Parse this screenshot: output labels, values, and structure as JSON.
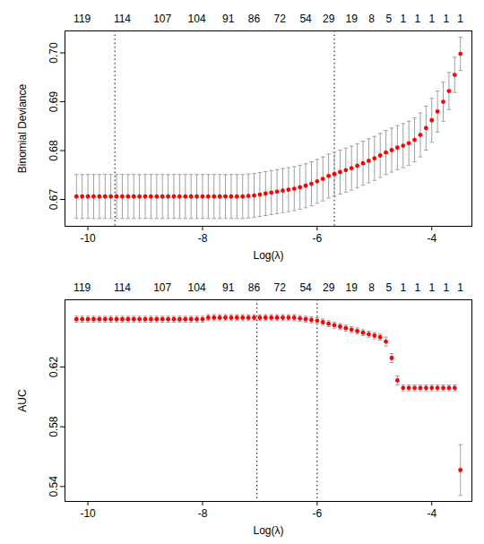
{
  "chart_data": [
    {
      "type": "scatter",
      "x_label": "Log(λ)",
      "y_label": "Binomial Deviance",
      "color": "#ff0000",
      "x": [
        -10.2,
        -10.1,
        -10.0,
        -9.9,
        -9.8,
        -9.7,
        -9.6,
        -9.5,
        -9.4,
        -9.3,
        -9.2,
        -9.1,
        -9.0,
        -8.9,
        -8.8,
        -8.7,
        -8.6,
        -8.5,
        -8.4,
        -8.3,
        -8.2,
        -8.1,
        -8.0,
        -7.9,
        -7.8,
        -7.7,
        -7.6,
        -7.5,
        -7.4,
        -7.3,
        -7.2,
        -7.1,
        -7.0,
        -6.9,
        -6.8,
        -6.7,
        -6.6,
        -6.5,
        -6.4,
        -6.3,
        -6.2,
        -6.1,
        -6.0,
        -5.9,
        -5.8,
        -5.7,
        -5.6,
        -5.5,
        -5.4,
        -5.3,
        -5.2,
        -5.1,
        -5.0,
        -4.9,
        -4.8,
        -4.7,
        -4.6,
        -4.5,
        -4.4,
        -4.3,
        -4.2,
        -4.1,
        -4.0,
        -3.9,
        -3.8,
        -3.7,
        -3.6,
        -3.5
      ],
      "values": [
        0.6706,
        0.6706,
        0.6706,
        0.6706,
        0.6706,
        0.6706,
        0.6706,
        0.6706,
        0.6706,
        0.6706,
        0.6706,
        0.6706,
        0.6706,
        0.6706,
        0.6706,
        0.6706,
        0.6706,
        0.6706,
        0.6706,
        0.6706,
        0.6706,
        0.6706,
        0.6706,
        0.6706,
        0.6706,
        0.6706,
        0.6706,
        0.6706,
        0.6706,
        0.6706,
        0.6707,
        0.6708,
        0.671,
        0.6712,
        0.6714,
        0.6716,
        0.6718,
        0.672,
        0.6722,
        0.6725,
        0.6728,
        0.6732,
        0.6737,
        0.6742,
        0.6748,
        0.6752,
        0.6756,
        0.676,
        0.6764,
        0.6769,
        0.6774,
        0.6779,
        0.6784,
        0.679,
        0.6796,
        0.6801,
        0.6806,
        0.681,
        0.6815,
        0.6822,
        0.6832,
        0.6846,
        0.6862,
        0.688,
        0.69,
        0.6922,
        0.6955,
        0.6998
      ],
      "errors": [
        0.0045,
        0.0045,
        0.0045,
        0.0045,
        0.0045,
        0.0045,
        0.0045,
        0.0045,
        0.0045,
        0.0045,
        0.0045,
        0.0045,
        0.0045,
        0.0045,
        0.0045,
        0.0045,
        0.0045,
        0.0045,
        0.0045,
        0.0045,
        0.0045,
        0.0045,
        0.0045,
        0.0045,
        0.0045,
        0.0045,
        0.0045,
        0.0045,
        0.0045,
        0.0045,
        0.0045,
        0.0045,
        0.0045,
        0.0045,
        0.0045,
        0.0045,
        0.0045,
        0.0045,
        0.0045,
        0.0045,
        0.0045,
        0.0045,
        0.0045,
        0.0045,
        0.0045,
        0.0045,
        0.0045,
        0.0045,
        0.0045,
        0.0045,
        0.0045,
        0.0045,
        0.0045,
        0.0045,
        0.0045,
        0.0045,
        0.0045,
        0.0045,
        0.0045,
        0.0045,
        0.0045,
        0.0045,
        0.0045,
        0.0042,
        0.004,
        0.0038,
        0.0036,
        0.0034
      ],
      "xlim": [
        -10.4,
        -3.3
      ],
      "xticks": [
        -10,
        -8,
        -6,
        -4
      ],
      "ylim": [
        0.6645,
        0.7045
      ],
      "yticks": [
        0.67,
        0.68,
        0.69,
        0.7
      ],
      "reference_lines": [
        -9.53,
        -5.7
      ],
      "line_style": "dotted",
      "top_ticks": [
        {
          "value": -10.1,
          "label": "119"
        },
        {
          "value": -9.4,
          "label": "114"
        },
        {
          "value": -8.7,
          "label": "107"
        },
        {
          "value": -8.1,
          "label": "104"
        },
        {
          "value": -7.55,
          "label": "91"
        },
        {
          "value": -7.1,
          "label": "86"
        },
        {
          "value": -6.65,
          "label": "72"
        },
        {
          "value": -6.2,
          "label": "54"
        },
        {
          "value": -5.8,
          "label": "29"
        },
        {
          "value": -5.4,
          "label": "19"
        },
        {
          "value": -5.05,
          "label": "8"
        },
        {
          "value": -4.75,
          "label": "5"
        },
        {
          "value": -4.5,
          "label": "1"
        },
        {
          "value": -4.25,
          "label": "1"
        },
        {
          "value": -4.0,
          "label": "1"
        },
        {
          "value": -3.75,
          "label": "1"
        },
        {
          "value": -3.5,
          "label": "1"
        }
      ]
    },
    {
      "type": "scatter",
      "x_label": "Log(λ)",
      "y_label": "AUC",
      "color": "#ff0000",
      "x": [
        -10.2,
        -10.1,
        -10.0,
        -9.9,
        -9.8,
        -9.7,
        -9.6,
        -9.5,
        -9.4,
        -9.3,
        -9.2,
        -9.1,
        -9.0,
        -8.9,
        -8.8,
        -8.7,
        -8.6,
        -8.5,
        -8.4,
        -8.3,
        -8.2,
        -8.1,
        -8.0,
        -7.9,
        -7.8,
        -7.7,
        -7.6,
        -7.5,
        -7.4,
        -7.3,
        -7.2,
        -7.1,
        -7.0,
        -6.9,
        -6.8,
        -6.7,
        -6.6,
        -6.5,
        -6.4,
        -6.3,
        -6.2,
        -6.1,
        -6.0,
        -5.9,
        -5.8,
        -5.7,
        -5.6,
        -5.5,
        -5.4,
        -5.3,
        -5.2,
        -5.1,
        -5.0,
        -4.9,
        -4.8,
        -4.7,
        -4.6,
        -4.5,
        -4.4,
        -4.3,
        -4.2,
        -4.1,
        -4.0,
        -3.9,
        -3.8,
        -3.7,
        -3.6,
        -3.5
      ],
      "values": [
        0.652,
        0.652,
        0.652,
        0.652,
        0.652,
        0.652,
        0.652,
        0.652,
        0.652,
        0.652,
        0.652,
        0.652,
        0.652,
        0.652,
        0.652,
        0.652,
        0.652,
        0.652,
        0.652,
        0.652,
        0.652,
        0.652,
        0.652,
        0.653,
        0.653,
        0.653,
        0.653,
        0.653,
        0.653,
        0.653,
        0.653,
        0.653,
        0.653,
        0.653,
        0.653,
        0.653,
        0.653,
        0.653,
        0.653,
        0.6525,
        0.652,
        0.6515,
        0.651,
        0.65,
        0.649,
        0.648,
        0.647,
        0.646,
        0.645,
        0.644,
        0.643,
        0.642,
        0.641,
        0.64,
        0.637,
        0.626,
        0.611,
        0.606,
        0.606,
        0.606,
        0.606,
        0.606,
        0.606,
        0.606,
        0.606,
        0.606,
        0.606,
        0.551
      ],
      "errors": [
        0.002,
        0.002,
        0.002,
        0.002,
        0.002,
        0.002,
        0.002,
        0.002,
        0.002,
        0.002,
        0.002,
        0.002,
        0.002,
        0.002,
        0.002,
        0.002,
        0.002,
        0.002,
        0.002,
        0.002,
        0.002,
        0.002,
        0.002,
        0.002,
        0.002,
        0.002,
        0.002,
        0.002,
        0.002,
        0.002,
        0.002,
        0.002,
        0.002,
        0.002,
        0.002,
        0.002,
        0.002,
        0.002,
        0.002,
        0.002,
        0.002,
        0.002,
        0.002,
        0.002,
        0.002,
        0.002,
        0.002,
        0.002,
        0.002,
        0.002,
        0.002,
        0.002,
        0.002,
        0.002,
        0.003,
        0.003,
        0.003,
        0.002,
        0.002,
        0.002,
        0.002,
        0.002,
        0.002,
        0.002,
        0.002,
        0.002,
        0.002,
        0.017
      ],
      "xlim": [
        -10.4,
        -3.3
      ],
      "xticks": [
        -10,
        -8,
        -6,
        -4
      ],
      "ylim": [
        0.53,
        0.665
      ],
      "yticks": [
        0.54,
        0.58,
        0.62
      ],
      "reference_lines": [
        -7.05,
        -6.0
      ],
      "line_style": "dotted",
      "top_ticks": [
        {
          "value": -10.1,
          "label": "119"
        },
        {
          "value": -9.4,
          "label": "114"
        },
        {
          "value": -8.7,
          "label": "107"
        },
        {
          "value": -8.1,
          "label": "104"
        },
        {
          "value": -7.55,
          "label": "91"
        },
        {
          "value": -7.1,
          "label": "86"
        },
        {
          "value": -6.65,
          "label": "72"
        },
        {
          "value": -6.2,
          "label": "54"
        },
        {
          "value": -5.8,
          "label": "29"
        },
        {
          "value": -5.4,
          "label": "19"
        },
        {
          "value": -5.05,
          "label": "8"
        },
        {
          "value": -4.75,
          "label": "5"
        },
        {
          "value": -4.5,
          "label": "1"
        },
        {
          "value": -4.25,
          "label": "1"
        },
        {
          "value": -4.0,
          "label": "1"
        },
        {
          "value": -3.75,
          "label": "1"
        },
        {
          "value": -3.5,
          "label": "1"
        }
      ]
    }
  ]
}
